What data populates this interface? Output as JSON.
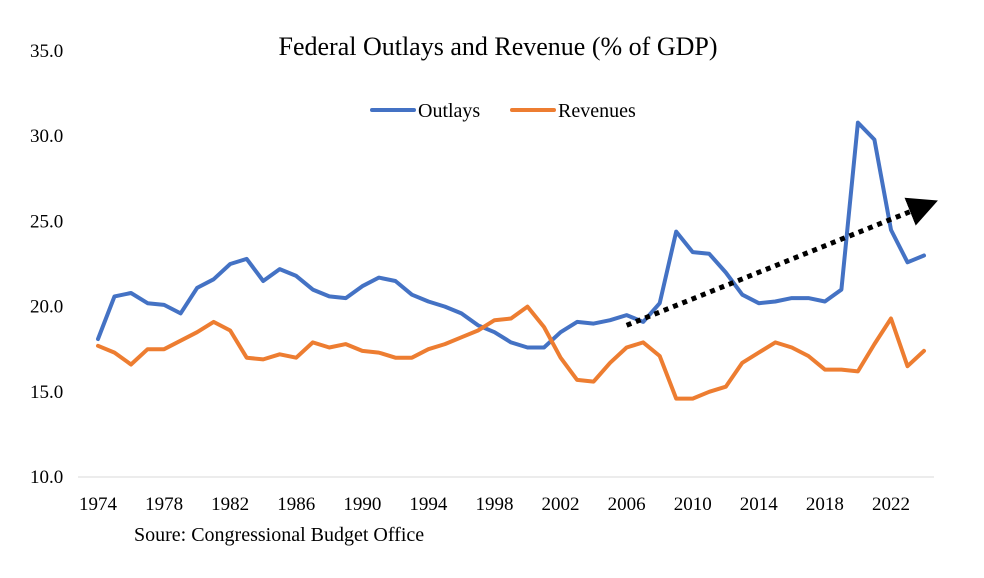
{
  "chart_data": {
    "type": "line",
    "title": "Federal Outlays and Revenue (% of GDP)",
    "source": "Soure: Congressional Budget Office",
    "xlabel": "",
    "ylabel": "",
    "ylim": [
      10,
      35
    ],
    "yticks": [
      "10.0",
      "15.0",
      "20.0",
      "25.0",
      "30.0",
      "35.0"
    ],
    "xlim": [
      1974,
      2024
    ],
    "xticks": [
      "1974",
      "1978",
      "1982",
      "1986",
      "1990",
      "1994",
      "1998",
      "2002",
      "2006",
      "2010",
      "2014",
      "2018",
      "2022"
    ],
    "grid": false,
    "legend": "top-center",
    "x": [
      1974,
      1975,
      1976,
      1977,
      1978,
      1979,
      1980,
      1981,
      1982,
      1983,
      1984,
      1985,
      1986,
      1987,
      1988,
      1989,
      1990,
      1991,
      1992,
      1993,
      1994,
      1995,
      1996,
      1997,
      1998,
      1999,
      2000,
      2001,
      2002,
      2003,
      2004,
      2005,
      2006,
      2007,
      2008,
      2009,
      2010,
      2011,
      2012,
      2013,
      2014,
      2015,
      2016,
      2017,
      2018,
      2019,
      2020,
      2021,
      2022,
      2023,
      2024
    ],
    "series": [
      {
        "name": "Outlays",
        "color": "#4472C4",
        "values": [
          18.1,
          20.6,
          20.8,
          20.2,
          20.1,
          19.6,
          21.1,
          21.6,
          22.5,
          22.8,
          21.5,
          22.2,
          21.8,
          21.0,
          20.6,
          20.5,
          21.2,
          21.7,
          21.5,
          20.7,
          20.3,
          20.0,
          19.6,
          18.9,
          18.5,
          17.9,
          17.6,
          17.6,
          18.5,
          19.1,
          19.0,
          19.2,
          19.5,
          19.1,
          20.2,
          24.4,
          23.2,
          23.1,
          22.0,
          20.7,
          20.2,
          20.3,
          20.5,
          20.5,
          20.3,
          21.0,
          30.8,
          29.8,
          24.5,
          22.6,
          23.0
        ]
      },
      {
        "name": "Revenues",
        "color": "#ED7D31",
        "values": [
          17.7,
          17.3,
          16.6,
          17.5,
          17.5,
          18.0,
          18.5,
          19.1,
          18.6,
          17.0,
          16.9,
          17.2,
          17.0,
          17.9,
          17.6,
          17.8,
          17.4,
          17.3,
          17.0,
          17.0,
          17.5,
          17.8,
          18.2,
          18.6,
          19.2,
          19.3,
          20.0,
          18.8,
          17.0,
          15.7,
          15.6,
          16.7,
          17.6,
          17.9,
          17.1,
          14.6,
          14.6,
          15.0,
          15.3,
          16.7,
          17.3,
          17.9,
          17.6,
          17.1,
          16.3,
          16.3,
          16.2,
          17.8,
          19.3,
          16.5,
          17.4
        ]
      }
    ],
    "trend_arrow": {
      "style": "dotted",
      "color": "#000000",
      "from": {
        "x": 2006,
        "y": 18.9
      },
      "to": {
        "x": 2024,
        "y": 25.9
      }
    }
  }
}
